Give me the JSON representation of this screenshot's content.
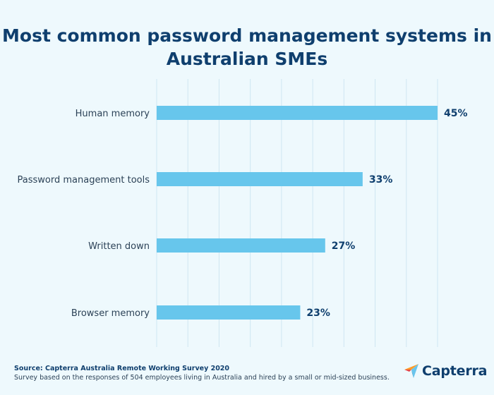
{
  "chart_data": {
    "type": "bar",
    "orientation": "horizontal",
    "title": "Most common password management systems in Australian SMEs",
    "title_lines": [
      "Most common password management systems in",
      "Australian SMEs"
    ],
    "categories": [
      "Human memory",
      "Password management tools",
      "Written down",
      "Browser memory"
    ],
    "values": [
      45,
      33,
      27,
      23
    ],
    "value_labels": [
      "45%",
      "33%",
      "27%",
      "23%"
    ],
    "unit": "%",
    "xlim": [
      0,
      45
    ],
    "grid": true,
    "bar_color": "#67c6ec",
    "grid_color": "#cfe6f2"
  },
  "footer": {
    "source": "Source: Capterra Australia Remote Working Survey 2020",
    "note": "Survey based on the responses of 504 employees living in Australia and hired by a small or mid-sized business."
  },
  "logo": {
    "text": "Capterra",
    "icon": "capterra-arrow-icon",
    "colors": [
      "#ff9d28",
      "#68c5ed",
      "#044d80",
      "#e54747"
    ]
  },
  "colors": {
    "background": "#eef9fd",
    "title": "#0f3f6e",
    "label": "#2c4257"
  }
}
